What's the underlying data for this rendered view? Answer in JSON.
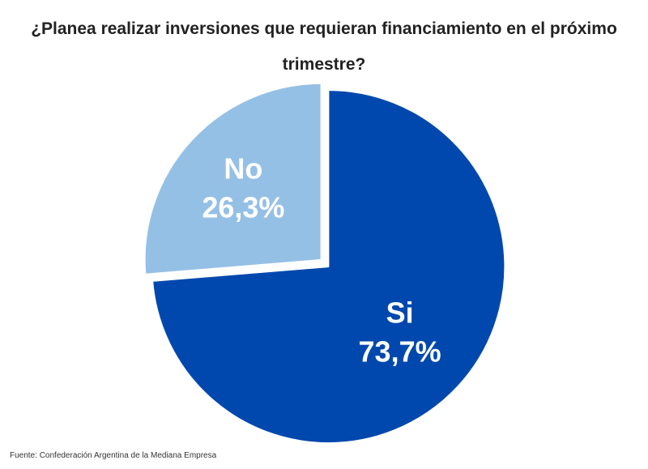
{
  "title": "¿Planea realizar inversiones que requieran financiamiento en el próximo trimestre?",
  "source": "Fuente: Confederación Argentina de la Mediana Empresa",
  "chart_data": {
    "type": "pie",
    "title": "¿Planea realizar inversiones que requieran financiamiento en el próximo trimestre?",
    "slices": [
      {
        "label": "Si",
        "value": 73.7,
        "value_label": "73,7%",
        "color": "#0048ad"
      },
      {
        "label": "No",
        "value": 26.3,
        "value_label": "26,3%",
        "color": "#95c0e6"
      }
    ],
    "start_angle": "12 o'clock",
    "direction": "clockwise",
    "legend": "none, labels inside slices"
  }
}
